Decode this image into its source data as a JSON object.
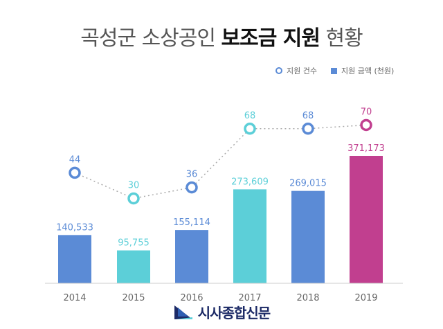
{
  "title": {
    "part1": "곡성군 소상공인 ",
    "part2": "보조금 지원",
    "part3": " 현황"
  },
  "legend": {
    "count_label": "지원 건수",
    "amount_label": "지원 금액 (천원)"
  },
  "brand": {
    "name": "시사종합신문",
    "color": "#1c2a66"
  },
  "chart_data": {
    "type": "bar",
    "title": "곡성군 소상공인 보조금 지원 현황",
    "categories": [
      "2014",
      "2015",
      "2016",
      "2017",
      "2018",
      "2019"
    ],
    "series": [
      {
        "name": "지원 금액 (천원)",
        "type": "bar",
        "values": [
          140533,
          95755,
          155114,
          273609,
          269015,
          371173
        ],
        "labels": [
          "140,533",
          "95,755",
          "155,114",
          "273,609",
          "269,015",
          "371,173"
        ],
        "colors": [
          "#5b8bd6",
          "#5ccfd8",
          "#5b8bd6",
          "#5ccfd8",
          "#5b8bd6",
          "#c13f8f"
        ]
      },
      {
        "name": "지원 건수",
        "type": "line",
        "values": [
          44,
          30,
          36,
          68,
          68,
          70
        ],
        "labels": [
          "44",
          "30",
          "36",
          "68",
          "68",
          "70"
        ],
        "colors": [
          "#5b8bd6",
          "#5ccfd8",
          "#5b8bd6",
          "#5ccfd8",
          "#5b8bd6",
          "#c13f8f"
        ]
      }
    ],
    "bar_ylim": [
      0,
      400000
    ],
    "line_ylim": [
      0,
      100
    ],
    "grid": false,
    "legend_position": "top-right"
  }
}
